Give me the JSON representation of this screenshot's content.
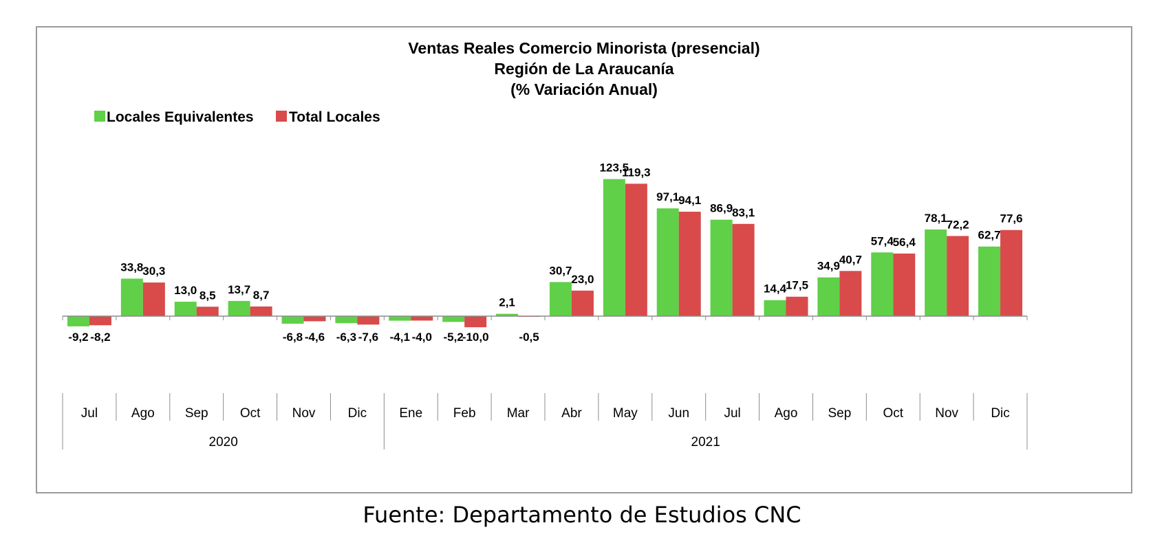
{
  "source_note": "Fuente: Departamento de Estudios CNC",
  "chart_data": {
    "type": "bar",
    "title": [
      "Ventas Reales Comercio Minorista (presencial)",
      "Región de La Araucanía",
      "(% Variación Anual)"
    ],
    "categories": [
      "Jul",
      "Ago",
      "Sep",
      "Oct",
      "Nov",
      "Dic",
      "Ene",
      "Feb",
      "Mar",
      "Abr",
      "May",
      "Jun",
      "Jul",
      "Ago",
      "Sep",
      "Oct",
      "Nov",
      "Dic"
    ],
    "year_groups": [
      {
        "label": "2020",
        "count": 6
      },
      {
        "label": "2021",
        "count": 12
      }
    ],
    "series": [
      {
        "name": "Locales Equivalentes",
        "color": "#5fd048",
        "values": [
          -9.2,
          33.8,
          13.0,
          13.7,
          -6.8,
          -6.3,
          -4.1,
          -5.2,
          2.1,
          30.7,
          123.5,
          97.1,
          86.9,
          14.4,
          34.9,
          57.4,
          78.1,
          62.7
        ],
        "labels": [
          "-9,2",
          "33,8",
          "13,0",
          "13,7",
          "-6,8",
          "-6,3",
          "-4,1",
          "-5,2",
          "2,1",
          "30,7",
          "123,5",
          "97,1",
          "86,9",
          "14,4",
          "34,9",
          "57,4",
          "78,1",
          "62,7"
        ]
      },
      {
        "name": "Total Locales",
        "color": "#d94a4a",
        "values": [
          -8.2,
          30.3,
          8.5,
          8.7,
          -4.6,
          -7.6,
          -4.0,
          -10.0,
          -0.5,
          23.0,
          119.3,
          94.1,
          83.1,
          17.5,
          40.7,
          56.4,
          72.2,
          77.6
        ],
        "labels": [
          "-8,2",
          "30,3",
          "8,5",
          "8,7",
          "-4,6",
          "-7,6",
          "-4,0",
          "-10,0",
          "-0,5",
          "23,0",
          "119,3",
          "94,1",
          "83,1",
          "17,5",
          "40,7",
          "56,4",
          "72,2",
          "77,6"
        ]
      }
    ],
    "legend_position": "top-left",
    "grid": false,
    "ylim": [
      -25,
      140
    ]
  }
}
